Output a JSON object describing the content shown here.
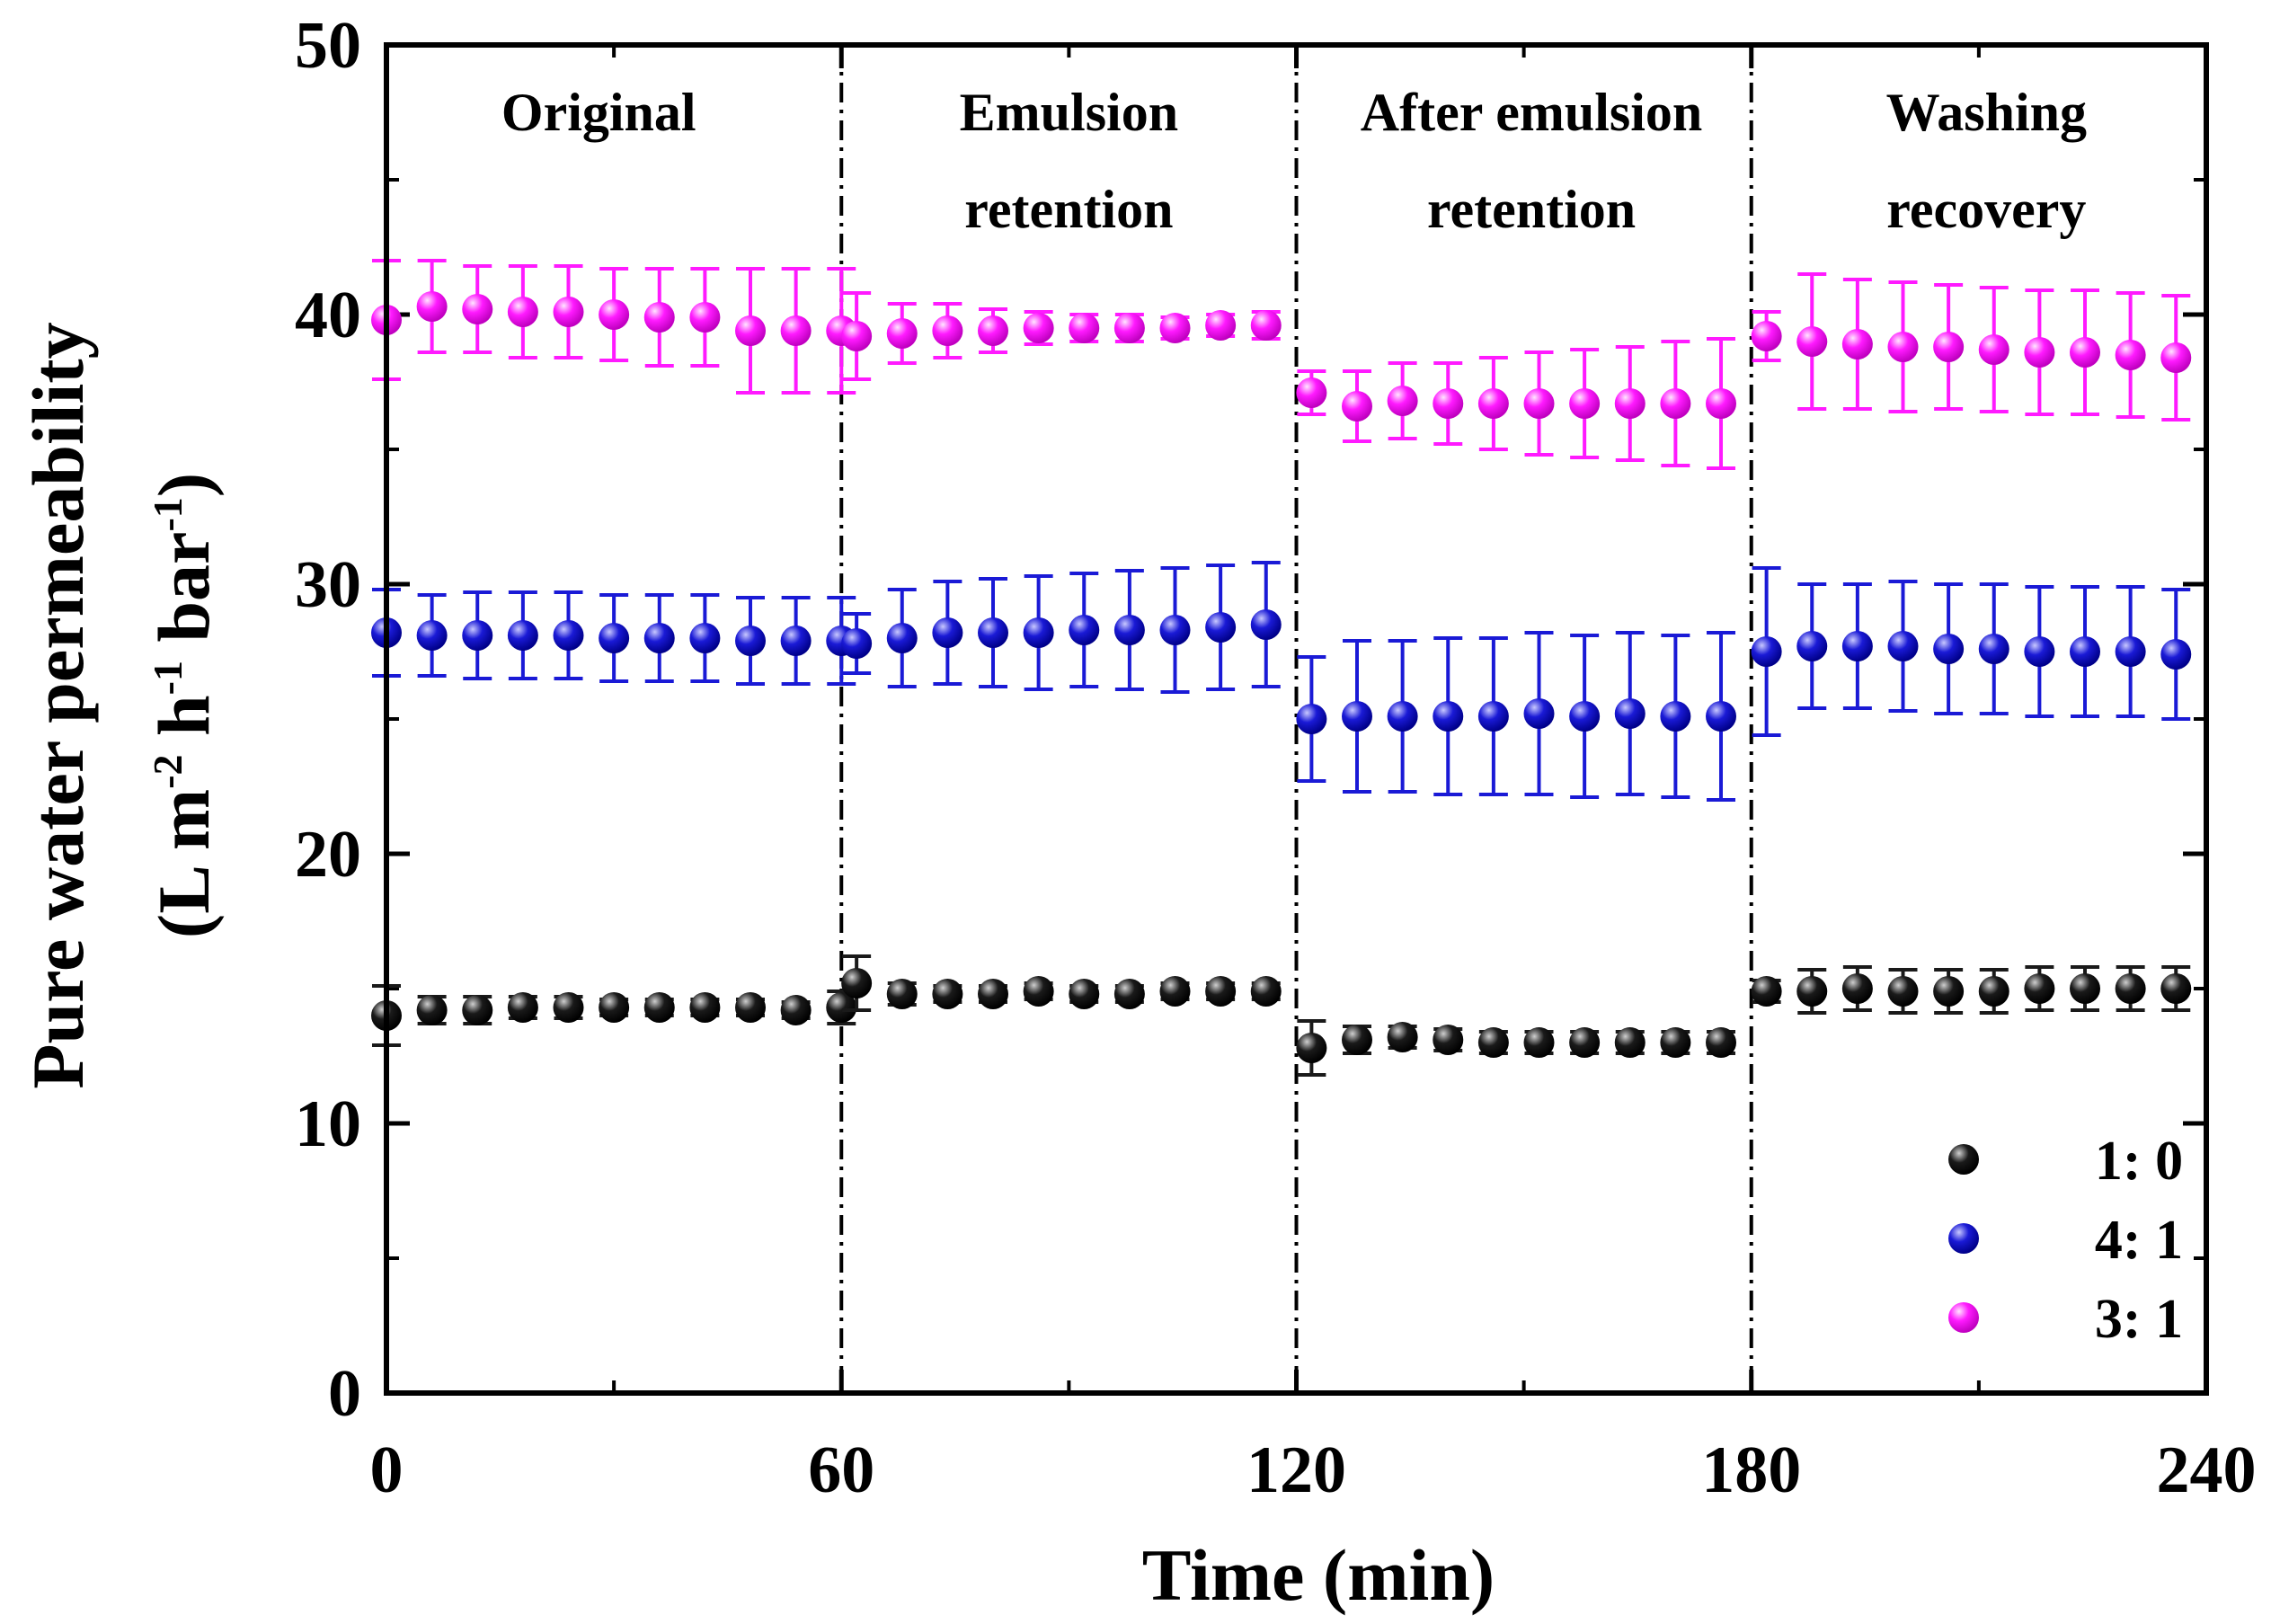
{
  "chart_data": {
    "type": "scatter",
    "title": "",
    "xlabel": "Time (min)",
    "ylabel": {
      "line1": "Pure water permeability",
      "line2_parts": [
        {
          "text": "(L m",
          "sup": false
        },
        {
          "text": "-2",
          "sup": true
        },
        {
          "text": " h",
          "sup": false
        },
        {
          "text": "-1",
          "sup": true
        },
        {
          "text": " bar",
          "sup": false
        },
        {
          "text": "-1",
          "sup": true
        },
        {
          "text": ")",
          "sup": false
        }
      ]
    },
    "xlim": [
      0,
      240
    ],
    "ylim": [
      0,
      50
    ],
    "xticks": [
      0,
      60,
      120,
      180,
      240
    ],
    "yticks": [
      0,
      10,
      20,
      30,
      40,
      50
    ],
    "x_minor_step": 30,
    "y_minor_step": 5,
    "phase_dividers": [
      60,
      120,
      180
    ],
    "phases": [
      {
        "lines": [
          "Original"
        ],
        "x_center": 28
      },
      {
        "lines": [
          "Emulsion",
          "retention"
        ],
        "x_center": 90
      },
      {
        "lines": [
          "After emulsion",
          "retention"
        ],
        "x_center": 151
      },
      {
        "lines": [
          "Washing",
          "recovery"
        ],
        "x_center": 211
      }
    ],
    "legend": {
      "position": "bottom-right"
    },
    "series": [
      {
        "name": "1: 0",
        "color": "#1a1a1a",
        "x": [
          0,
          6,
          12,
          18,
          24,
          30,
          36,
          42,
          48,
          54,
          60,
          62,
          68,
          74,
          80,
          86,
          92,
          98,
          104,
          110,
          116,
          122,
          128,
          134,
          140,
          146,
          152,
          158,
          164,
          170,
          176,
          182,
          188,
          194,
          200,
          206,
          212,
          218,
          224,
          230,
          236
        ],
        "y": [
          14.0,
          14.2,
          14.2,
          14.3,
          14.3,
          14.3,
          14.3,
          14.3,
          14.3,
          14.2,
          14.3,
          15.2,
          14.8,
          14.8,
          14.8,
          14.9,
          14.8,
          14.8,
          14.9,
          14.9,
          14.9,
          12.8,
          13.1,
          13.2,
          13.1,
          13.0,
          13.0,
          13.0,
          13.0,
          13.0,
          13.0,
          14.9,
          14.9,
          15.0,
          14.9,
          14.9,
          14.9,
          15.0,
          15.0,
          15.0,
          15.0
        ],
        "err": [
          1.1,
          0.5,
          0.5,
          0.4,
          0.4,
          0.3,
          0.3,
          0.3,
          0.3,
          0.3,
          0.6,
          1.0,
          0.4,
          0.3,
          0.3,
          0.3,
          0.3,
          0.3,
          0.3,
          0.3,
          0.3,
          1.0,
          0.5,
          0.4,
          0.4,
          0.4,
          0.4,
          0.4,
          0.4,
          0.4,
          0.4,
          0.4,
          0.8,
          0.8,
          0.8,
          0.8,
          0.8,
          0.8,
          0.8,
          0.8,
          0.8
        ]
      },
      {
        "name": "4: 1",
        "color": "#1a1ad6",
        "x": [
          0,
          6,
          12,
          18,
          24,
          30,
          36,
          42,
          48,
          54,
          60,
          62,
          68,
          74,
          80,
          86,
          92,
          98,
          104,
          110,
          116,
          122,
          128,
          134,
          140,
          146,
          152,
          158,
          164,
          170,
          176,
          182,
          188,
          194,
          200,
          206,
          212,
          218,
          224,
          230,
          236
        ],
        "y": [
          28.2,
          28.1,
          28.1,
          28.1,
          28.1,
          28.0,
          28.0,
          28.0,
          27.9,
          27.9,
          27.9,
          27.8,
          28.0,
          28.2,
          28.2,
          28.2,
          28.3,
          28.3,
          28.3,
          28.4,
          28.5,
          25.0,
          25.1,
          25.1,
          25.1,
          25.1,
          25.2,
          25.1,
          25.2,
          25.1,
          25.1,
          27.5,
          27.7,
          27.7,
          27.7,
          27.6,
          27.6,
          27.5,
          27.5,
          27.5,
          27.4
        ],
        "err": [
          1.6,
          1.5,
          1.6,
          1.6,
          1.6,
          1.6,
          1.6,
          1.6,
          1.6,
          1.6,
          1.6,
          1.1,
          1.8,
          1.9,
          2.0,
          2.1,
          2.1,
          2.2,
          2.3,
          2.3,
          2.3,
          2.3,
          2.8,
          2.8,
          2.9,
          2.9,
          3.0,
          3.0,
          3.0,
          3.0,
          3.1,
          3.1,
          2.3,
          2.3,
          2.4,
          2.4,
          2.4,
          2.4,
          2.4,
          2.4,
          2.4
        ]
      },
      {
        "name": "3: 1",
        "color": "#ff1aff",
        "x": [
          0,
          6,
          12,
          18,
          24,
          30,
          36,
          42,
          48,
          54,
          60,
          62,
          68,
          74,
          80,
          86,
          92,
          98,
          104,
          110,
          116,
          122,
          128,
          134,
          140,
          146,
          152,
          158,
          164,
          170,
          176,
          182,
          188,
          194,
          200,
          206,
          212,
          218,
          224,
          230,
          236
        ],
        "y": [
          39.8,
          40.3,
          40.2,
          40.1,
          40.1,
          40.0,
          39.9,
          39.9,
          39.4,
          39.4,
          39.4,
          39.2,
          39.3,
          39.4,
          39.4,
          39.5,
          39.5,
          39.5,
          39.5,
          39.6,
          39.6,
          37.1,
          36.6,
          36.8,
          36.7,
          36.7,
          36.7,
          36.7,
          36.7,
          36.7,
          36.7,
          39.2,
          39.0,
          38.9,
          38.8,
          38.8,
          38.7,
          38.6,
          38.6,
          38.5,
          38.4
        ],
        "err": [
          2.2,
          1.7,
          1.6,
          1.7,
          1.7,
          1.7,
          1.8,
          1.8,
          2.3,
          2.3,
          2.3,
          1.6,
          1.1,
          1.0,
          0.8,
          0.6,
          0.5,
          0.5,
          0.4,
          0.4,
          0.5,
          0.8,
          1.3,
          1.4,
          1.5,
          1.7,
          1.9,
          2.0,
          2.1,
          2.3,
          2.4,
          0.9,
          2.5,
          2.4,
          2.4,
          2.3,
          2.3,
          2.3,
          2.3,
          2.3,
          2.3
        ]
      }
    ]
  }
}
